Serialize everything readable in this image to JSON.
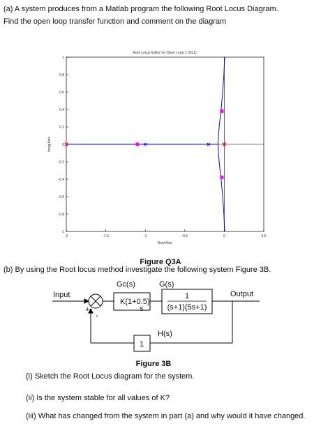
{
  "question_a": {
    "line1": "(a) A system produces from a Matlab program the following Root Locus Diagram.",
    "line2": "Find the open loop transfer function and comment on the diagram"
  },
  "chart_data": {
    "type": "line",
    "title": "Root Locus Editor for Open Loop 1 (OL1)",
    "x_label": "Real Axis",
    "y_label": "Imag Axis",
    "xlim": [
      -2,
      0.5
    ],
    "ylim": [
      -1,
      1
    ],
    "xticks": [
      -2,
      -1.5,
      -1,
      -0.5,
      0,
      0.5
    ],
    "yticks": [
      -1,
      -0.8,
      -0.6,
      -0.4,
      -0.2,
      0,
      0.2,
      0.4,
      0.6,
      0.8,
      1
    ],
    "series": [
      {
        "color": "#0000ff",
        "x": [
          -2,
          -0.08
        ],
        "values": [
          0,
          0
        ]
      },
      {
        "color": "#0000ff",
        "x": [
          -0.08,
          -0.065,
          -0.04,
          -0.02,
          -0.005,
          0.005
        ],
        "values": [
          0,
          0.2,
          0.4,
          0.6,
          0.8,
          1
        ]
      },
      {
        "color": "#0000ff",
        "x": [
          -0.08,
          -0.065,
          -0.04,
          -0.02,
          -0.005,
          0.005
        ],
        "values": [
          0,
          -0.2,
          -0.4,
          -0.6,
          -0.8,
          -1
        ]
      }
    ],
    "open_loop_poles": {
      "color": "#0000ff",
      "x": [
        -1,
        -0.2,
        0
      ],
      "values": [
        0,
        0,
        0
      ]
    },
    "red_markers": {
      "color": "#ff0000",
      "x": [
        -2,
        0
      ],
      "values": [
        0,
        0
      ]
    },
    "closed_loop_poles": {
      "color": "#ff00ff",
      "x": [
        -1.1,
        -0.03,
        -0.03
      ],
      "values": [
        0,
        0.38,
        -0.38
      ]
    }
  },
  "figure_a_caption": "Figure Q3A",
  "question_b": "(b) By using the Root locus method investigate the following system Figure 3B.",
  "diagram": {
    "gc": "Gc(s)",
    "g": "G(s)",
    "input": "Input",
    "output": "Output",
    "plus": "+",
    "minus": "-",
    "k_block": "K(1+0.5)",
    "k_block_denominator": "s",
    "g_numerator": "1",
    "g_denominator": "(s+1)(5s+1)",
    "h": "H(s)",
    "h_block": "1"
  },
  "figure_b_caption": "Figure 3B",
  "questions": [
    "(i) Sketch the Root Locus diagram for the system.",
    "(ii) Is the system stable for all values of K?",
    "(iii) What has changed from the system in part (a) and why would it have changed."
  ]
}
